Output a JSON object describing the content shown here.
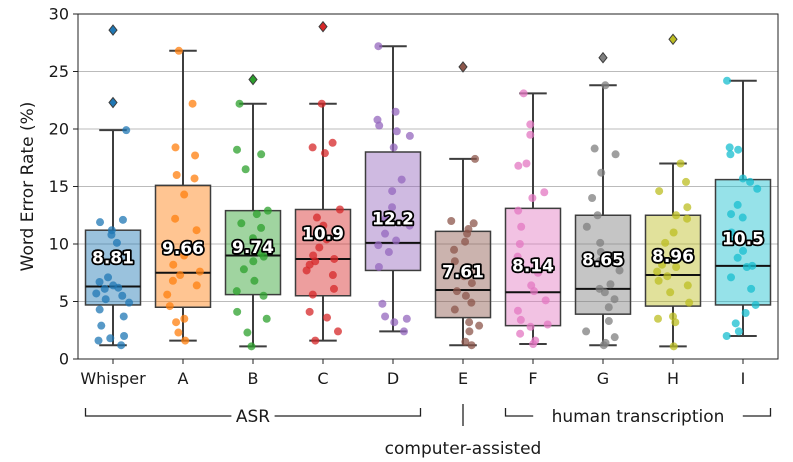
{
  "chart_data": {
    "type": "box",
    "ylabel": "Word Error Rate (%)",
    "xlabel": "",
    "ylim": [
      0,
      30
    ],
    "yticks": [
      0,
      5,
      10,
      15,
      20,
      25,
      30
    ],
    "grid": "horizontal",
    "categories": [
      "Whisper",
      "A",
      "B",
      "C",
      "D",
      "E",
      "F",
      "G",
      "H",
      "I"
    ],
    "series": [
      {
        "name": "Whisper",
        "color": "#1f77b4",
        "q1": 4.7,
        "median": 6.3,
        "q3": 11.2,
        "whisker_low": 1.2,
        "whisker_high": 19.9,
        "mean_label": "8.81",
        "outliers": [
          28.6,
          22.3
        ],
        "points": [
          1.2,
          1.6,
          1.8,
          2.0,
          2.9,
          3.7,
          4.3,
          4.9,
          5.2,
          5.5,
          5.7,
          6.1,
          6.2,
          6.4,
          6.7,
          7.1,
          10.1,
          10.8,
          11.2,
          11.9,
          12.1,
          19.9
        ]
      },
      {
        "name": "A",
        "color": "#ff7f0e",
        "q1": 4.5,
        "median": 7.5,
        "q3": 15.1,
        "whisker_low": 1.6,
        "whisker_high": 26.8,
        "mean_label": "9.66",
        "outliers": [],
        "points": [
          1.6,
          2.3,
          3.2,
          3.5,
          4.6,
          5.6,
          6.4,
          6.8,
          7.3,
          7.6,
          8.2,
          9.0,
          10.0,
          11.2,
          12.2,
          14.3,
          15.7,
          16.0,
          17.7,
          18.4,
          22.2,
          26.8
        ]
      },
      {
        "name": "B",
        "color": "#2ca02c",
        "q1": 5.6,
        "median": 9.0,
        "q3": 12.9,
        "whisker_low": 1.1,
        "whisker_high": 22.2,
        "mean_label": "9.74",
        "outliers": [
          24.3
        ],
        "points": [
          1.1,
          2.3,
          3.5,
          4.1,
          5.5,
          5.9,
          6.8,
          7.8,
          8.5,
          8.9,
          9.2,
          9.9,
          10.5,
          11.4,
          11.8,
          12.6,
          12.9,
          16.5,
          17.8,
          18.2,
          22.2
        ]
      },
      {
        "name": "C",
        "color": "#d62728",
        "q1": 5.5,
        "median": 8.7,
        "q3": 13.0,
        "whisker_low": 1.6,
        "whisker_high": 22.2,
        "mean_label": "10.9",
        "outliers": [
          28.9
        ],
        "points": [
          1.6,
          2.4,
          3.6,
          4.1,
          5.6,
          6.1,
          7.3,
          7.7,
          8.2,
          8.5,
          8.7,
          9.0,
          9.7,
          10.4,
          11.6,
          12.3,
          13.0,
          17.9,
          18.4,
          18.8,
          22.2
        ]
      },
      {
        "name": "D",
        "color": "#9467bd",
        "q1": 7.7,
        "median": 10.1,
        "q3": 18.0,
        "whisker_low": 2.4,
        "whisker_high": 27.2,
        "mean_label": "12.2",
        "outliers": [],
        "points": [
          2.4,
          3.2,
          3.5,
          3.7,
          4.8,
          8.0,
          9.3,
          9.9,
          10.3,
          10.9,
          11.6,
          12.2,
          13.2,
          14.6,
          15.6,
          18.4,
          19.4,
          19.8,
          20.3,
          20.8,
          21.5,
          27.2
        ]
      },
      {
        "name": "E",
        "color": "#8c564b",
        "q1": 3.6,
        "median": 6.0,
        "q3": 11.1,
        "whisker_low": 1.2,
        "whisker_high": 17.4,
        "mean_label": "7.61",
        "outliers": [
          25.4
        ],
        "points": [
          1.2,
          1.5,
          2.4,
          2.9,
          3.2,
          4.3,
          4.9,
          5.5,
          5.9,
          6.6,
          7.2,
          8.5,
          9.5,
          10.2,
          10.9,
          11.3,
          11.8,
          12.0,
          17.4
        ]
      },
      {
        "name": "F",
        "color": "#e377c2",
        "q1": 2.9,
        "median": 5.8,
        "q3": 13.1,
        "whisker_low": 1.3,
        "whisker_high": 23.1,
        "mean_label": "8.14",
        "outliers": [],
        "points": [
          1.3,
          1.6,
          2.2,
          2.8,
          3.0,
          3.4,
          4.2,
          5.1,
          5.9,
          6.4,
          7.5,
          8.9,
          10.0,
          11.5,
          12.9,
          14.0,
          14.5,
          16.8,
          17.0,
          19.5,
          20.4,
          23.1
        ]
      },
      {
        "name": "G",
        "color": "#7f7f7f",
        "q1": 3.9,
        "median": 6.1,
        "q3": 12.5,
        "whisker_low": 1.2,
        "whisker_high": 23.8,
        "mean_label": "8.65",
        "outliers": [
          26.2
        ],
        "points": [
          1.2,
          1.4,
          1.9,
          2.4,
          3.3,
          4.5,
          5.2,
          5.8,
          6.1,
          6.5,
          7.7,
          8.5,
          9.3,
          10.1,
          11.5,
          12.5,
          14.0,
          16.2,
          17.8,
          18.3,
          23.8
        ]
      },
      {
        "name": "H",
        "color": "#bcbd22",
        "q1": 4.6,
        "median": 7.3,
        "q3": 12.5,
        "whisker_low": 1.1,
        "whisker_high": 17.0,
        "mean_label": "8.96",
        "outliers": [
          27.8
        ],
        "points": [
          1.1,
          3.2,
          3.5,
          3.7,
          4.9,
          5.8,
          6.4,
          6.8,
          7.2,
          7.6,
          8.0,
          8.2,
          9.2,
          10.1,
          11.0,
          12.2,
          12.5,
          13.2,
          14.6,
          15.4,
          17.0
        ]
      },
      {
        "name": "I",
        "color": "#17becf",
        "q1": 4.7,
        "median": 8.1,
        "q3": 15.6,
        "whisker_low": 2.0,
        "whisker_high": 24.2,
        "mean_label": "10.5",
        "outliers": [],
        "points": [
          2.0,
          2.4,
          3.1,
          4.0,
          4.7,
          6.1,
          7.1,
          8.0,
          8.1,
          8.8,
          9.4,
          10.3,
          11.0,
          12.3,
          12.6,
          13.4,
          14.8,
          15.4,
          15.7,
          17.8,
          18.2,
          18.4,
          24.2
        ]
      }
    ],
    "groups": [
      {
        "label": "ASR",
        "from": "Whisper",
        "to": "D"
      },
      {
        "label": "computer-assisted",
        "from": "E",
        "to": "E"
      },
      {
        "label": "human transcription",
        "from": "F",
        "to": "I"
      }
    ]
  }
}
